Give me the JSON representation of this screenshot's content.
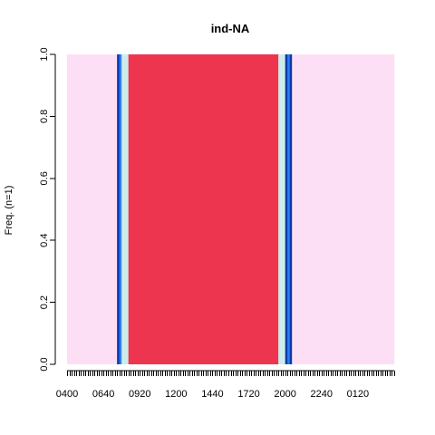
{
  "chart_data": {
    "type": "area",
    "title": "ind-NA",
    "xlabel": "",
    "ylabel": "Freq. (n=1)",
    "ylim": [
      0,
      1
    ],
    "y_ticks": [
      "0.0",
      "0.2",
      "0.4",
      "0.6",
      "0.8",
      "1.0"
    ],
    "x_tick_labels": [
      "0400",
      "0640",
      "0920",
      "1200",
      "1440",
      "1720",
      "2000",
      "2240",
      "0120"
    ],
    "time_slots": 144,
    "slot_minutes": 10,
    "slot_start": "0400",
    "grid": false,
    "legend": "none",
    "states": [
      {
        "start": "0400",
        "end": "0740",
        "color": "#FDDFF5"
      },
      {
        "start": "0740",
        "end": "0750",
        "color": "#0A3AA8"
      },
      {
        "start": "0750",
        "end": "0800",
        "color": "#2E7CF6"
      },
      {
        "start": "0800",
        "end": "0830",
        "color": "#CDEDEA"
      },
      {
        "start": "0830",
        "end": "1930",
        "color": "#EE3550"
      },
      {
        "start": "1930",
        "end": "2000",
        "color": "#CDEDEA"
      },
      {
        "start": "2000",
        "end": "2010",
        "color": "#0A3AA8"
      },
      {
        "start": "2010",
        "end": "2020",
        "color": "#2E7CF6"
      },
      {
        "start": "2020",
        "end": "2030",
        "color": "#0A3AA8"
      },
      {
        "start": "2030",
        "end": "0400",
        "color": "#FDDFF5"
      }
    ]
  }
}
